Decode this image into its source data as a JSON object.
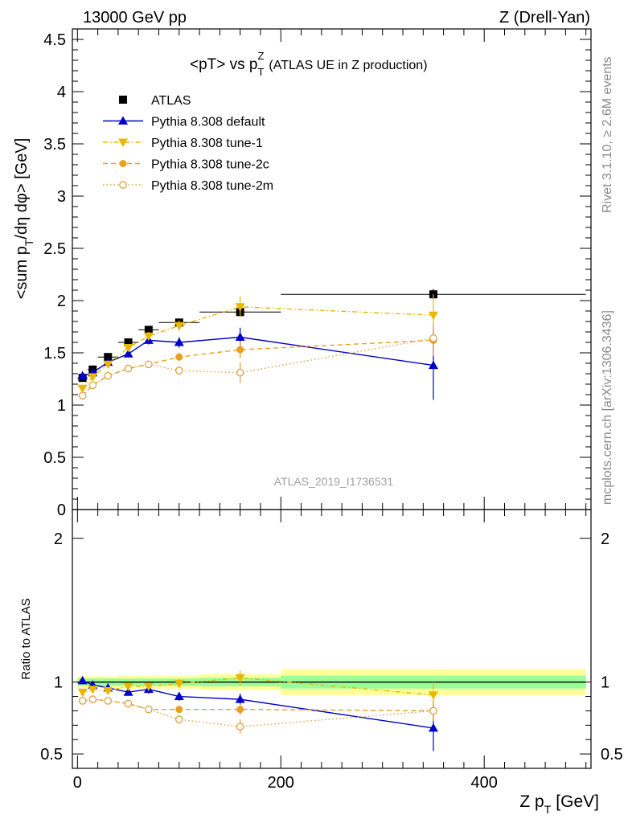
{
  "header": {
    "left": "13000 GeV pp",
    "right": "Z (Drell-Yan)"
  },
  "side_labels": {
    "rivet": "Rivet 3.1.10, ≥ 2.6M events",
    "mcplots": "mcplots.cern.ch [arXiv:1306.3436]"
  },
  "colors": {
    "data": "#000000",
    "default": "#0000cc",
    "tune1": "#e8b800",
    "tune2c": "#e8a020",
    "tune2m": "#e0a040",
    "band_inner": "#99ff99",
    "band_outer": "#ffff99"
  },
  "chart_data": [
    {
      "type": "scatter",
      "title": "<pT> vs p_T^Z (ATLAS UE in Z production)",
      "title_main": "<pT> vs p",
      "title_sup": "Z",
      "title_sub": "T",
      "title_rest": "(ATLAS UE in Z production)",
      "ylabel": "<sum p_T/dη dφ> [GeV]",
      "ylabel_a": "<sum p",
      "ylabel_sub": "T",
      "ylabel_b": "/dη dφ> [GeV]",
      "analysis": "ATLAS_2019_I1736531",
      "xlim": [
        -5,
        505
      ],
      "ylim": [
        0,
        4.6
      ],
      "yticks": [
        "0",
        "0.5",
        "1",
        "1.5",
        "2",
        "2.5",
        "3",
        "3.5",
        "4",
        "4.5"
      ],
      "legend_position": "top-left",
      "series": [
        {
          "name": "ATLAS",
          "style": "data",
          "x": [
            5,
            15,
            30,
            50,
            70,
            100,
            160,
            350
          ],
          "y": [
            1.26,
            1.34,
            1.46,
            1.6,
            1.72,
            1.79,
            1.89,
            2.06
          ],
          "err": [
            0.02,
            0.02,
            0.02,
            0.02,
            0.03,
            0.03,
            0.04,
            0.05
          ],
          "xerr": [
            5,
            5,
            10,
            10,
            10,
            20,
            40,
            150
          ]
        },
        {
          "name": "Pythia 8.308 default",
          "style": "default",
          "x": [
            5,
            15,
            30,
            50,
            70,
            100,
            160,
            350
          ],
          "y": [
            1.28,
            1.31,
            1.41,
            1.49,
            1.62,
            1.6,
            1.65,
            1.38
          ],
          "err": [
            0.02,
            0.02,
            0.03,
            0.03,
            0.04,
            0.05,
            0.09,
            0.33
          ]
        },
        {
          "name": "Pythia 8.308 tune-1",
          "style": "tune1",
          "x": [
            5,
            15,
            30,
            50,
            70,
            100,
            160,
            350
          ],
          "y": [
            1.16,
            1.27,
            1.39,
            1.55,
            1.66,
            1.76,
            1.94,
            1.86
          ],
          "err": [
            0.02,
            0.02,
            0.03,
            0.03,
            0.04,
            0.05,
            0.1,
            0.2
          ]
        },
        {
          "name": "Pythia 8.308 tune-2c",
          "style": "tune2c",
          "x": [
            5,
            15,
            30,
            50,
            70,
            100,
            160,
            350
          ],
          "y": [
            1.09,
            1.19,
            1.28,
            1.35,
            1.39,
            1.46,
            1.53,
            1.62
          ],
          "err": [
            0.02,
            0.02,
            0.02,
            0.02,
            0.03,
            0.04,
            0.08,
            0.15
          ]
        },
        {
          "name": "Pythia 8.308 tune-2m",
          "style": "tune2m",
          "x": [
            5,
            15,
            30,
            50,
            70,
            100,
            160,
            350
          ],
          "y": [
            1.09,
            1.19,
            1.28,
            1.35,
            1.39,
            1.33,
            1.31,
            1.64
          ],
          "err": [
            0.02,
            0.02,
            0.02,
            0.02,
            0.03,
            0.04,
            0.1,
            0.12
          ]
        }
      ]
    },
    {
      "type": "scatter",
      "ylabel": "Ratio to ATLAS",
      "xlabel": "Z p_T [GeV]",
      "xlabel_a": "Z p",
      "xlabel_sub": "T",
      "xlabel_b": "[GeV]",
      "xlim": [
        -5,
        505
      ],
      "xticks": [
        "0",
        "200",
        "400"
      ],
      "ylim": [
        0.4,
        2.2
      ],
      "yticks": [
        "0.5",
        "1",
        "2"
      ],
      "bands": [
        {
          "x_lo": 0,
          "x_hi": 10,
          "inner": [
            0.975,
            1.025
          ],
          "outer": [
            0.96,
            1.04
          ]
        },
        {
          "x_lo": 10,
          "x_hi": 20,
          "inner": [
            0.975,
            1.025
          ],
          "outer": [
            0.96,
            1.04
          ]
        },
        {
          "x_lo": 20,
          "x_hi": 40,
          "inner": [
            0.975,
            1.025
          ],
          "outer": [
            0.96,
            1.04
          ]
        },
        {
          "x_lo": 40,
          "x_hi": 60,
          "inner": [
            0.975,
            1.025
          ],
          "outer": [
            0.955,
            1.045
          ]
        },
        {
          "x_lo": 60,
          "x_hi": 80,
          "inner": [
            0.975,
            1.025
          ],
          "outer": [
            0.955,
            1.045
          ]
        },
        {
          "x_lo": 80,
          "x_hi": 120,
          "inner": [
            0.975,
            1.025
          ],
          "outer": [
            0.955,
            1.045
          ]
        },
        {
          "x_lo": 120,
          "x_hi": 200,
          "inner": [
            0.97,
            1.03
          ],
          "outer": [
            0.945,
            1.055
          ]
        },
        {
          "x_lo": 200,
          "x_hi": 500,
          "inner": [
            0.955,
            1.045
          ],
          "outer": [
            0.91,
            1.09
          ]
        }
      ],
      "series": [
        {
          "name": "Pythia 8.308 default",
          "style": "default",
          "x": [
            5,
            15,
            30,
            50,
            70,
            100,
            160,
            350
          ],
          "y": [
            1.01,
            0.98,
            0.96,
            0.93,
            0.95,
            0.9,
            0.88,
            0.68
          ],
          "err": [
            0.02,
            0.02,
            0.02,
            0.02,
            0.03,
            0.03,
            0.04,
            0.16
          ]
        },
        {
          "name": "Pythia 8.308 tune-1",
          "style": "tune1",
          "x": [
            5,
            15,
            30,
            50,
            70,
            100,
            160,
            350
          ],
          "y": [
            0.93,
            0.95,
            0.94,
            0.97,
            0.97,
            0.99,
            1.03,
            0.91
          ],
          "err": [
            0.02,
            0.02,
            0.02,
            0.02,
            0.02,
            0.03,
            0.05,
            0.09
          ]
        },
        {
          "name": "Pythia 8.308 tune-2c",
          "style": "tune2c",
          "x": [
            5,
            15,
            30,
            50,
            70,
            100,
            160,
            350
          ],
          "y": [
            0.87,
            0.88,
            0.87,
            0.85,
            0.81,
            0.81,
            0.81,
            0.8
          ],
          "err": [
            0.02,
            0.02,
            0.02,
            0.02,
            0.02,
            0.02,
            0.04,
            0.07
          ]
        },
        {
          "name": "Pythia 8.308 tune-2m",
          "style": "tune2m",
          "x": [
            5,
            15,
            30,
            50,
            70,
            100,
            160,
            350
          ],
          "y": [
            0.87,
            0.88,
            0.87,
            0.85,
            0.81,
            0.74,
            0.69,
            0.8
          ],
          "err": [
            0.02,
            0.02,
            0.02,
            0.02,
            0.02,
            0.03,
            0.05,
            0.06
          ]
        }
      ]
    }
  ]
}
